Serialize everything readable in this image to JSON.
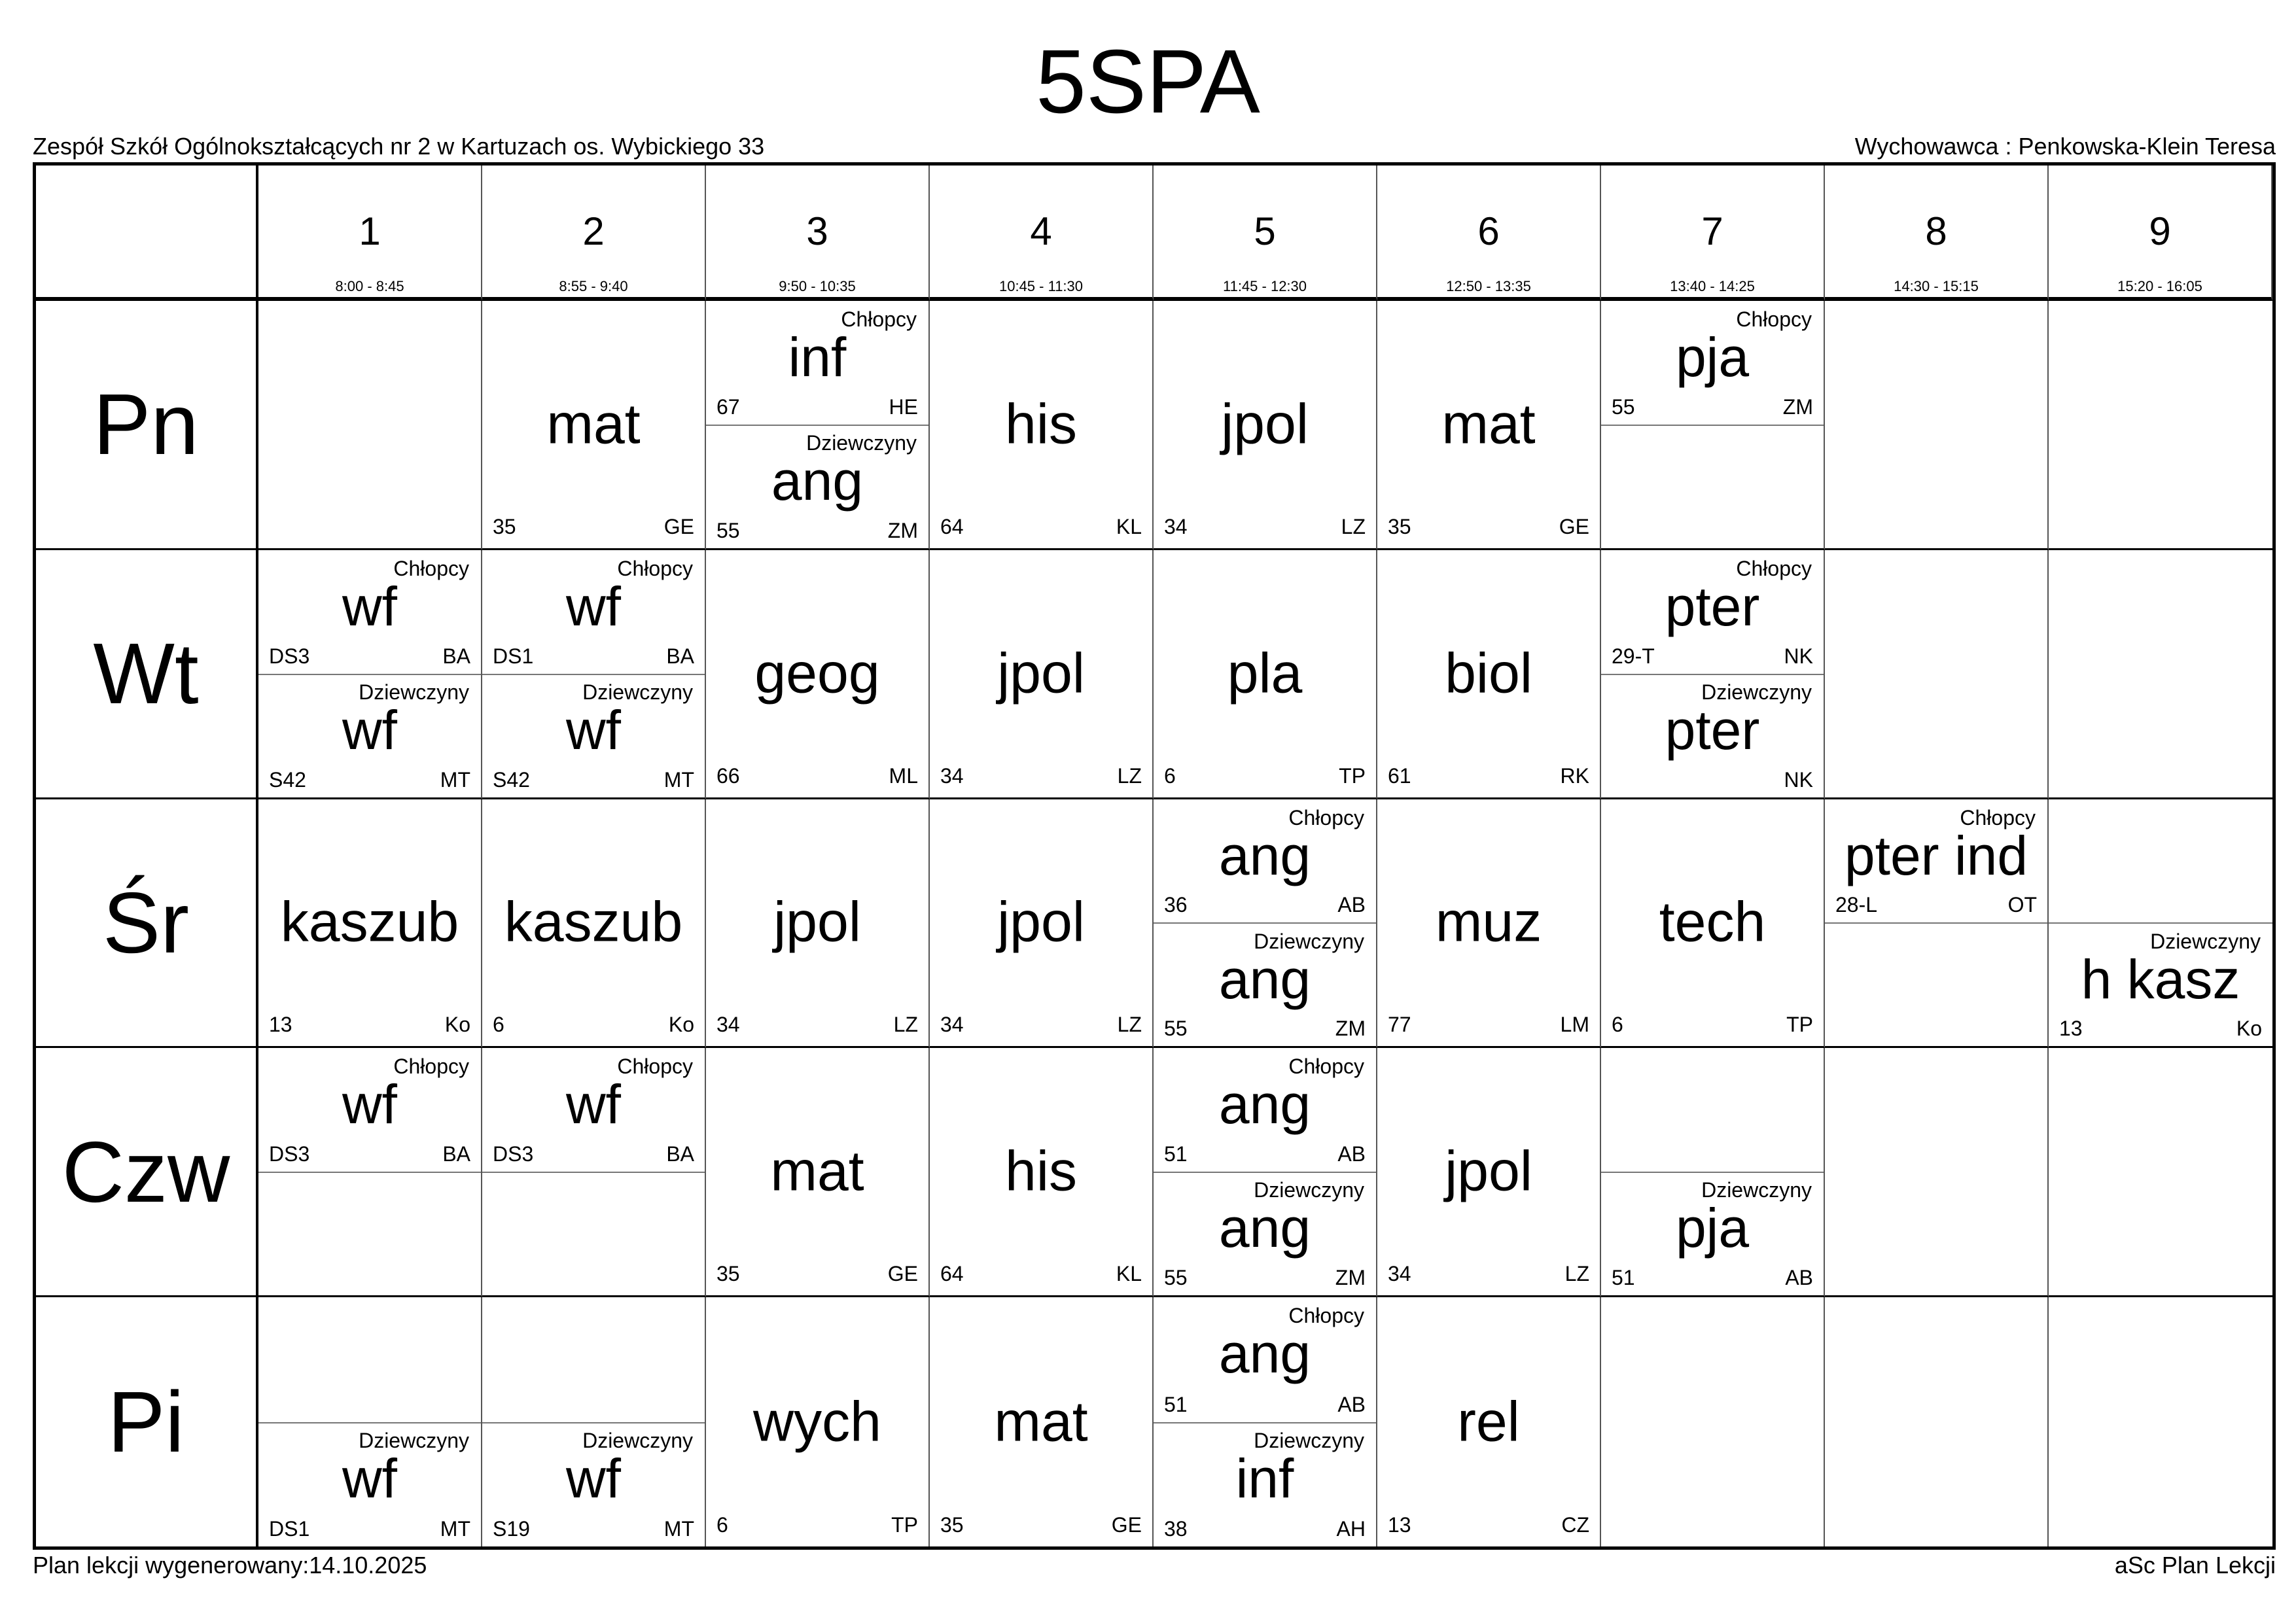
{
  "title": "5SPA",
  "school": "Zespół Szkół Ogólnokształcących nr 2 w Kartuzach os. Wybickiego 33",
  "form_teacher": "Wychowawca : Penkowska-Klein Teresa",
  "footer": {
    "generated": "Plan lekcji wygenerowany:14.10.2025",
    "app": "aSc Plan Lekcji"
  },
  "periods": [
    {
      "num": "1",
      "time": "8:00 - 8:45"
    },
    {
      "num": "2",
      "time": "8:55 - 9:40"
    },
    {
      "num": "3",
      "time": "9:50 - 10:35"
    },
    {
      "num": "4",
      "time": "10:45 - 11:30"
    },
    {
      "num": "5",
      "time": "11:45 - 12:30"
    },
    {
      "num": "6",
      "time": "12:50 - 13:35"
    },
    {
      "num": "7",
      "time": "13:40 - 14:25"
    },
    {
      "num": "8",
      "time": "14:30 - 15:15"
    },
    {
      "num": "9",
      "time": "15:20 - 16:05"
    }
  ],
  "days": [
    {
      "name": "Pn",
      "cells": [
        null,
        {
          "subject": "mat",
          "room": "35",
          "teacher": "GE"
        },
        {
          "top": {
            "group": "Chłopcy",
            "subject": "inf",
            "room": "67",
            "teacher": "HE"
          },
          "bottom": {
            "group": "Dziewczyny",
            "subject": "ang",
            "room": "55",
            "teacher": "ZM"
          }
        },
        {
          "subject": "his",
          "room": "64",
          "teacher": "KL"
        },
        {
          "subject": "jpol",
          "room": "34",
          "teacher": "LZ"
        },
        {
          "subject": "mat",
          "room": "35",
          "teacher": "GE"
        },
        {
          "top": {
            "group": "Chłopcy",
            "subject": "pja",
            "room": "55",
            "teacher": "ZM"
          },
          "bottom": null
        },
        null,
        null
      ]
    },
    {
      "name": "Wt",
      "cells": [
        {
          "top": {
            "group": "Chłopcy",
            "subject": "wf",
            "room": "DS3",
            "teacher": "BA"
          },
          "bottom": {
            "group": "Dziewczyny",
            "subject": "wf",
            "room": "S42",
            "teacher": "MT"
          }
        },
        {
          "top": {
            "group": "Chłopcy",
            "subject": "wf",
            "room": "DS1",
            "teacher": "BA"
          },
          "bottom": {
            "group": "Dziewczyny",
            "subject": "wf",
            "room": "S42",
            "teacher": "MT"
          }
        },
        {
          "subject": "geog",
          "room": "66",
          "teacher": "ML"
        },
        {
          "subject": "jpol",
          "room": "34",
          "teacher": "LZ"
        },
        {
          "subject": "pla",
          "room": "6",
          "teacher": "TP"
        },
        {
          "subject": "biol",
          "room": "61",
          "teacher": "RK"
        },
        {
          "top": {
            "group": "Chłopcy",
            "subject": "pter",
            "room": "29-T",
            "teacher": "NK"
          },
          "bottom": {
            "group": "Dziewczyny",
            "subject": "pter",
            "room": "",
            "teacher": "NK"
          }
        },
        null,
        null
      ]
    },
    {
      "name": "Śr",
      "cells": [
        {
          "subject": "kaszub",
          "room": "13",
          "teacher": "Ko"
        },
        {
          "subject": "kaszub",
          "room": "6",
          "teacher": "Ko"
        },
        {
          "subject": "jpol",
          "room": "34",
          "teacher": "LZ"
        },
        {
          "subject": "jpol",
          "room": "34",
          "teacher": "LZ"
        },
        {
          "top": {
            "group": "Chłopcy",
            "subject": "ang",
            "room": "36",
            "teacher": "AB"
          },
          "bottom": {
            "group": "Dziewczyny",
            "subject": "ang",
            "room": "55",
            "teacher": "ZM"
          }
        },
        {
          "subject": "muz",
          "room": "77",
          "teacher": "LM"
        },
        {
          "subject": "tech",
          "room": "6",
          "teacher": "TP"
        },
        {
          "top": {
            "group": "Chłopcy",
            "subject": "pter ind",
            "room": "28-L",
            "teacher": "OT"
          },
          "bottom": null
        },
        {
          "top": null,
          "bottom": {
            "group": "Dziewczyny",
            "subject": "h kasz",
            "room": "13",
            "teacher": "Ko"
          }
        }
      ]
    },
    {
      "name": "Czw",
      "cells": [
        {
          "top": {
            "group": "Chłopcy",
            "subject": "wf",
            "room": "DS3",
            "teacher": "BA"
          },
          "bottom": null
        },
        {
          "top": {
            "group": "Chłopcy",
            "subject": "wf",
            "room": "DS3",
            "teacher": "BA"
          },
          "bottom": null
        },
        {
          "subject": "mat",
          "room": "35",
          "teacher": "GE"
        },
        {
          "subject": "his",
          "room": "64",
          "teacher": "KL"
        },
        {
          "top": {
            "group": "Chłopcy",
            "subject": "ang",
            "room": "51",
            "teacher": "AB"
          },
          "bottom": {
            "group": "Dziewczyny",
            "subject": "ang",
            "room": "55",
            "teacher": "ZM"
          }
        },
        {
          "subject": "jpol",
          "room": "34",
          "teacher": "LZ"
        },
        {
          "top": null,
          "bottom": {
            "group": "Dziewczyny",
            "subject": "pja",
            "room": "51",
            "teacher": "AB"
          }
        },
        null,
        null
      ]
    },
    {
      "name": "Pi",
      "cells": [
        {
          "top": null,
          "bottom": {
            "group": "Dziewczyny",
            "subject": "wf",
            "room": "DS1",
            "teacher": "MT"
          }
        },
        {
          "top": null,
          "bottom": {
            "group": "Dziewczyny",
            "subject": "wf",
            "room": "S19",
            "teacher": "MT"
          }
        },
        {
          "subject": "wych",
          "room": "6",
          "teacher": "TP"
        },
        {
          "subject": "mat",
          "room": "35",
          "teacher": "GE"
        },
        {
          "top": {
            "group": "Chłopcy",
            "subject": "ang",
            "room": "51",
            "teacher": "AB"
          },
          "bottom": {
            "group": "Dziewczyny",
            "subject": "inf",
            "room": "38",
            "teacher": "AH"
          }
        },
        {
          "subject": "rel",
          "room": "13",
          "teacher": "CZ"
        },
        null,
        null,
        null
      ]
    }
  ]
}
